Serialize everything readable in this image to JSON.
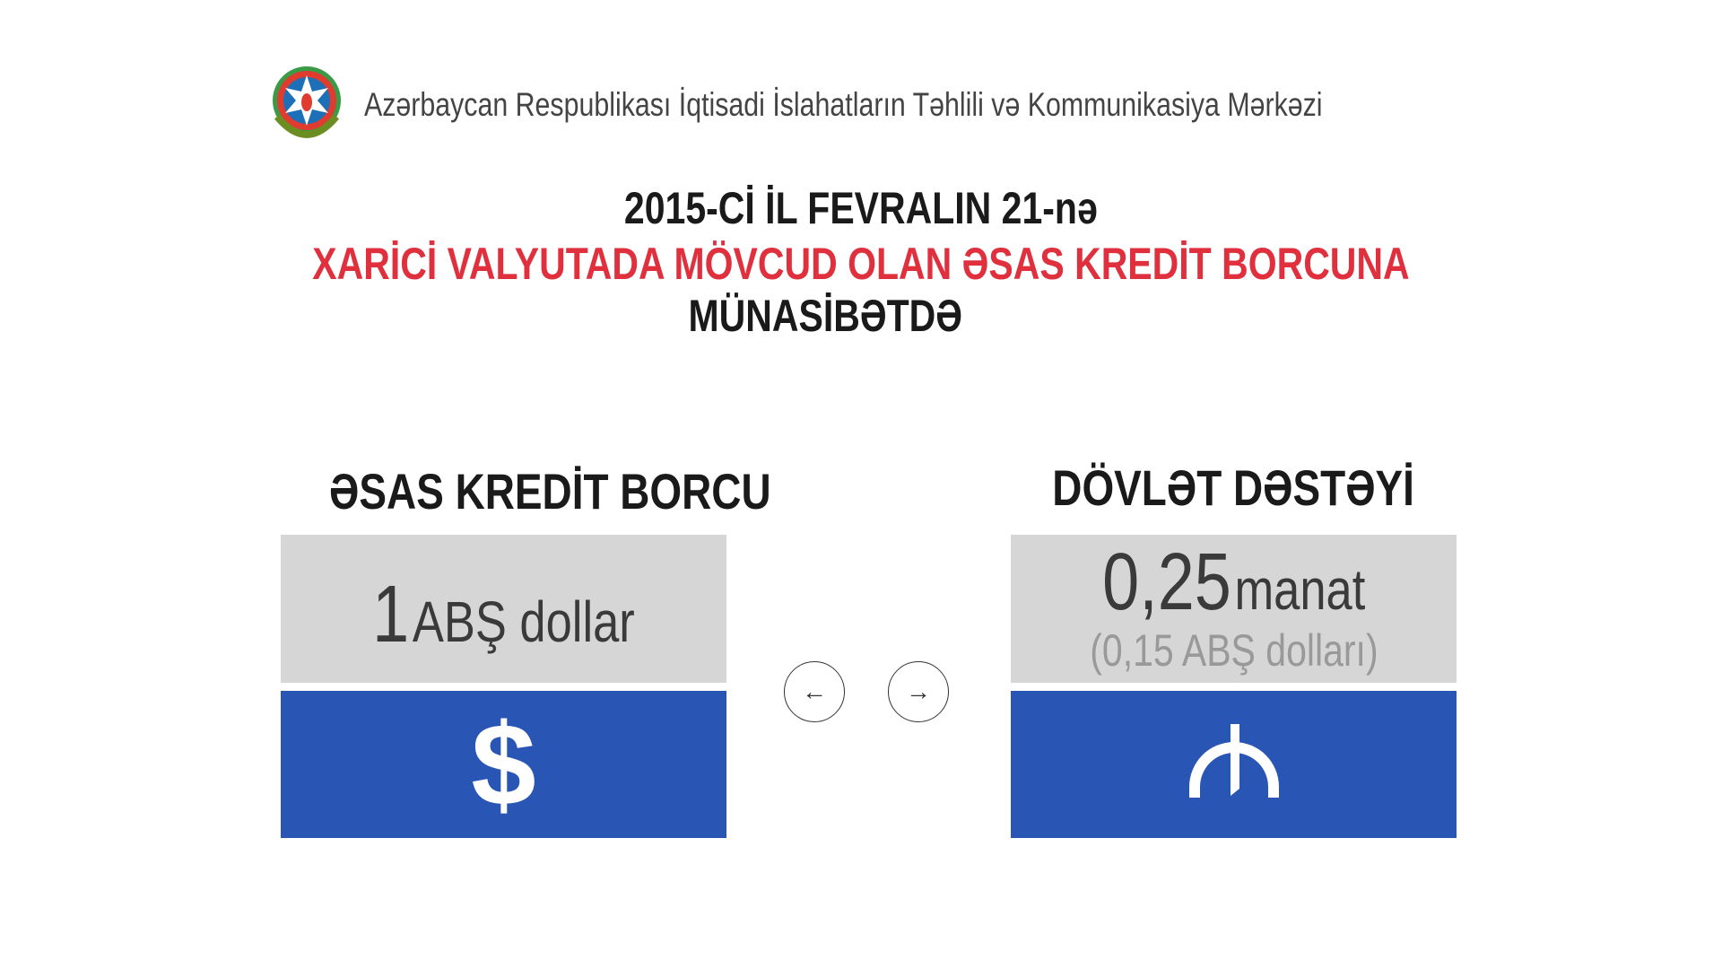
{
  "header": {
    "organization": "Azərbaycan Respublikası İqtisadi İslahatların Təhlili və Kommunikasiya Mərkəzi",
    "logo": "azerbaijan-coat-of-arms"
  },
  "title": {
    "line1": "2015-Cİ İL FEVRALIN 21-nə",
    "line2": "XARİCİ VALYUTADA MÖVCUD OLAN ƏSAS KREDİT BORCUNA",
    "line3": "MÜNASİBƏTDƏ"
  },
  "left": {
    "heading": "ƏSAS KREDİT BORCU",
    "amount": "1",
    "unit": "ABŞ dollar",
    "icon": "dollar-sign"
  },
  "right": {
    "heading": "DÖVLƏT DƏSTƏYİ",
    "amount": "0,25",
    "unit": "manat",
    "sub": "(0,15 ABŞ dolları)",
    "icon": "manat-sign"
  },
  "nav": {
    "prev": "←",
    "next": "→"
  },
  "colors": {
    "accent_red": "#e0303e",
    "blue": "#2956b5",
    "gray": "#d6d6d6"
  }
}
